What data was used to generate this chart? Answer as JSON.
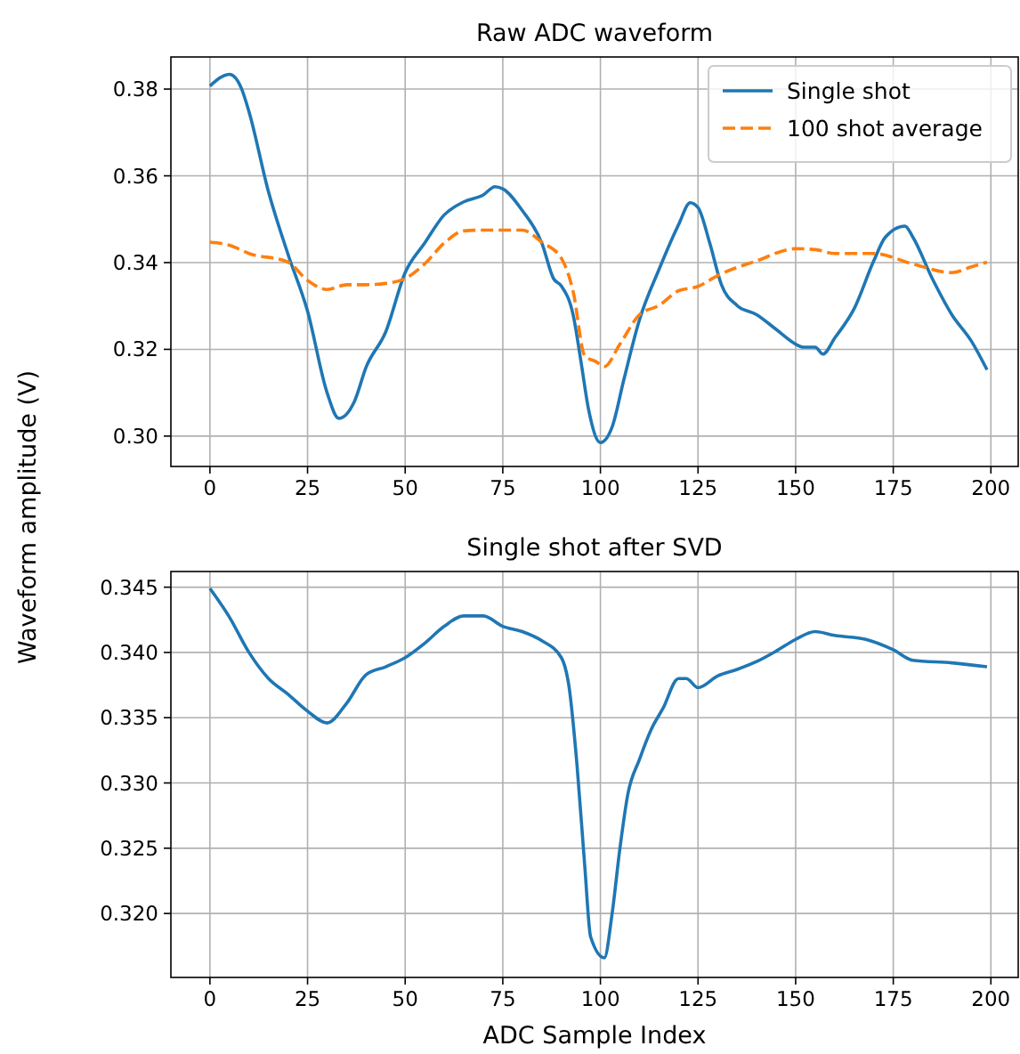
{
  "chart_data": [
    {
      "type": "line",
      "title": "Raw ADC waveform",
      "ylabel": "Waveform amplitude (V)",
      "xlim": [
        -10,
        207
      ],
      "ylim": [
        0.293,
        0.3874
      ],
      "xticks": [
        0,
        25,
        50,
        75,
        100,
        125,
        150,
        175,
        200
      ],
      "yticks": [
        {
          "value": 0.3,
          "label": "0.30"
        },
        {
          "value": 0.32,
          "label": "0.32"
        },
        {
          "value": 0.34,
          "label": "0.34"
        },
        {
          "value": 0.36,
          "label": "0.36"
        },
        {
          "value": 0.38,
          "label": "0.38"
        }
      ],
      "grid": true,
      "legend": "top right",
      "series": [
        {
          "name": "Single shot",
          "color": "#1f77b4",
          "line_style": "solid",
          "x": [
            0,
            5,
            8,
            10,
            15,
            20,
            25,
            30,
            33,
            37,
            40,
            45,
            50,
            55,
            60,
            65,
            70,
            73,
            75,
            80,
            85,
            88,
            90,
            93,
            95,
            97,
            100,
            103,
            106,
            110,
            115,
            120,
            123,
            125,
            128,
            131,
            135,
            140,
            145,
            150,
            152,
            155,
            157,
            160,
            165,
            170,
            173,
            178,
            180,
            185,
            190,
            195,
            199
          ],
          "values": [
            0.3807,
            0.3834,
            0.3803,
            0.3748,
            0.3563,
            0.3419,
            0.3288,
            0.31,
            0.3041,
            0.308,
            0.3159,
            0.324,
            0.3377,
            0.3445,
            0.351,
            0.354,
            0.3556,
            0.3575,
            0.357,
            0.352,
            0.3445,
            0.3363,
            0.3346,
            0.328,
            0.3173,
            0.306,
            0.2985,
            0.3021,
            0.313,
            0.3268,
            0.3384,
            0.3487,
            0.3538,
            0.3527,
            0.3445,
            0.3349,
            0.3301,
            0.328,
            0.3246,
            0.3212,
            0.3205,
            0.3205,
            0.3189,
            0.3226,
            0.3294,
            0.3404,
            0.3459,
            0.3484,
            0.3459,
            0.3363,
            0.328,
            0.3219,
            0.3153
          ]
        },
        {
          "name": "100 shot average",
          "color": "#ff7f0e",
          "line_style": "dashed",
          "x": [
            0,
            5,
            10,
            20,
            25,
            30,
            35,
            40,
            45,
            50,
            55,
            60,
            65,
            70,
            80,
            85,
            90,
            93,
            96,
            99,
            101,
            105,
            110,
            115,
            120,
            125,
            130,
            140,
            150,
            155,
            160,
            170,
            180,
            190,
            195,
            199
          ],
          "values": [
            0.3447,
            0.344,
            0.3421,
            0.3401,
            0.3359,
            0.3338,
            0.3349,
            0.3349,
            0.3352,
            0.3363,
            0.3397,
            0.3445,
            0.3473,
            0.3475,
            0.3475,
            0.3447,
            0.341,
            0.3334,
            0.3185,
            0.3171,
            0.316,
            0.3212,
            0.328,
            0.3301,
            0.3335,
            0.3345,
            0.337,
            0.3404,
            0.3432,
            0.343,
            0.3421,
            0.3421,
            0.3397,
            0.3377,
            0.339,
            0.3401
          ]
        }
      ]
    },
    {
      "type": "line",
      "title": "Single shot after SVD",
      "xlabel": "ADC Sample Index",
      "xlim": [
        -10,
        207
      ],
      "ylim": [
        0.3151,
        0.3462
      ],
      "xticks": [
        0,
        25,
        50,
        75,
        100,
        125,
        150,
        175,
        200
      ],
      "yticks": [
        {
          "value": 0.32,
          "label": "0.320"
        },
        {
          "value": 0.325,
          "label": "0.325"
        },
        {
          "value": 0.33,
          "label": "0.330"
        },
        {
          "value": 0.335,
          "label": "0.335"
        },
        {
          "value": 0.34,
          "label": "0.340"
        },
        {
          "value": 0.345,
          "label": "0.345"
        }
      ],
      "grid": true,
      "series": [
        {
          "color": "#1f77b4",
          "line_style": "solid",
          "x": [
            0,
            5,
            10,
            15,
            20,
            25,
            30,
            35,
            40,
            45,
            50,
            55,
            60,
            65,
            70,
            75,
            80,
            85,
            90,
            92,
            94,
            96,
            97.5,
            101,
            103,
            105,
            107,
            110,
            113,
            116,
            120,
            122,
            125,
            130,
            135,
            140,
            145,
            150,
            155,
            160,
            168,
            175,
            180,
            190,
            199
          ],
          "values": [
            0.3449,
            0.3427,
            0.34,
            0.338,
            0.3368,
            0.3355,
            0.3346,
            0.3361,
            0.3383,
            0.3389,
            0.3396,
            0.3407,
            0.342,
            0.3428,
            0.3428,
            0.342,
            0.3416,
            0.3409,
            0.3396,
            0.3373,
            0.3314,
            0.3236,
            0.3182,
            0.3166,
            0.32,
            0.325,
            0.3291,
            0.3318,
            0.3341,
            0.3357,
            0.338,
            0.338,
            0.3373,
            0.3382,
            0.3387,
            0.3393,
            0.3401,
            0.341,
            0.3416,
            0.3413,
            0.341,
            0.3402,
            0.3394,
            0.3392,
            0.3389
          ]
        }
      ]
    }
  ]
}
